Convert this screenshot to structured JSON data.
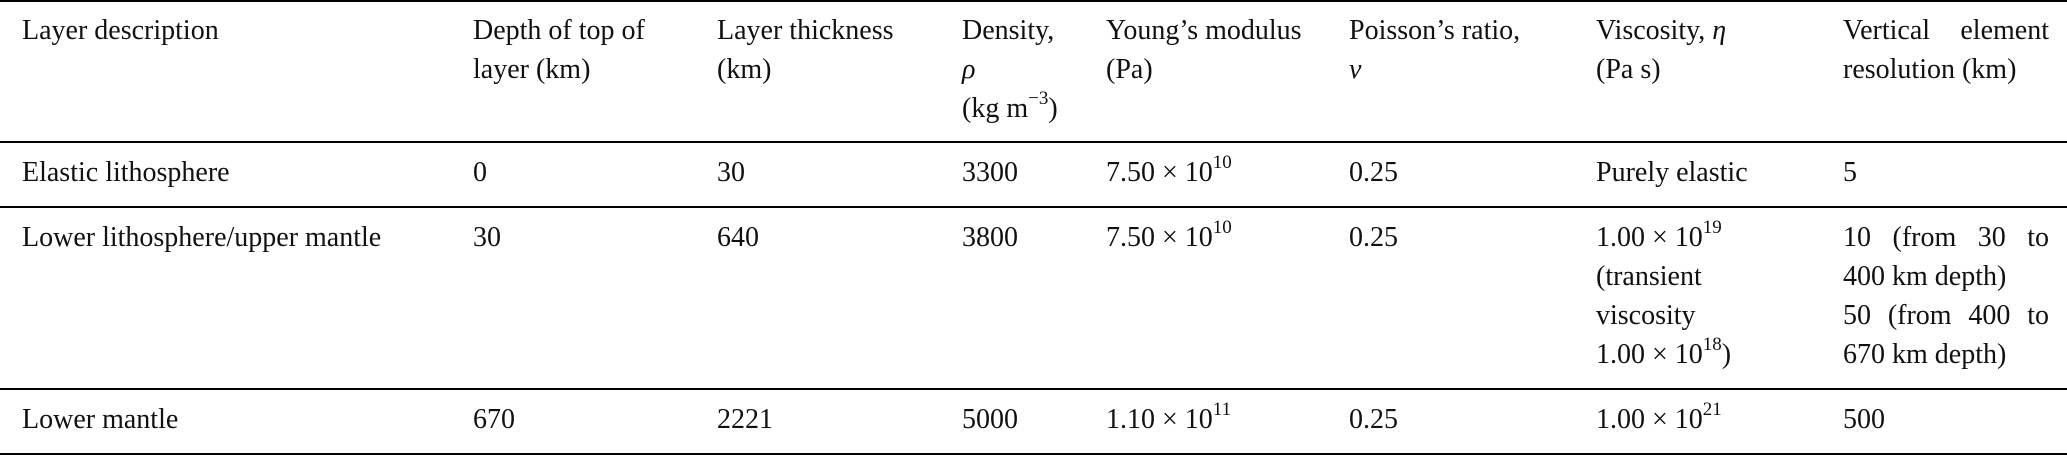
{
  "headers": [
    "Layer description",
    "Depth of top of layer (km)",
    "Layer thickness (km)",
    {
      "line1": "Density,",
      "symbol": "ρ",
      "unit_base": "(kg m",
      "unit_exp": "−3",
      "unit_close": ")"
    },
    "Young’s modulus (Pa)",
    {
      "line1": "Poisson’s ratio,",
      "symbol": "ν"
    },
    {
      "line1": "Viscosity, ",
      "symbol": "η",
      "line2": "(Pa s)"
    },
    "Vertical element resolution (km)"
  ],
  "rows": [
    {
      "description": "Elastic lithosphere",
      "depth": "0",
      "thickness": "30",
      "density": "3300",
      "youngs_mantissa": "7.50 × 10",
      "youngs_exp": "10",
      "poisson": "0.25",
      "viscosity_text": "Purely elastic",
      "resolution_lines": [
        "5"
      ]
    },
    {
      "description": "Lower lithosphere/upper mantle",
      "depth": "30",
      "thickness": "640",
      "density": "3800",
      "youngs_mantissa": "7.50 × 10",
      "youngs_exp": "10",
      "poisson": "0.25",
      "viscosity_mantissa": "1.00 × 10",
      "viscosity_exp": "19",
      "viscosity_note_line1": "(transient",
      "viscosity_note_line2": "viscosity",
      "viscosity_note_mantissa": "1.00 × 10",
      "viscosity_note_exp": "18",
      "viscosity_note_close": ")",
      "resolution_lines": [
        "10 (from 30 to 400 km depth)",
        "50 (from 400 to 670 km depth)"
      ]
    },
    {
      "description": "Lower mantle",
      "depth": "670",
      "thickness": "2221",
      "density": "5000",
      "youngs_mantissa": "1.10 × 10",
      "youngs_exp": "11",
      "poisson": "0.25",
      "viscosity_mantissa": "1.00 × 10",
      "viscosity_exp": "21",
      "resolution_lines": [
        "500"
      ]
    }
  ]
}
